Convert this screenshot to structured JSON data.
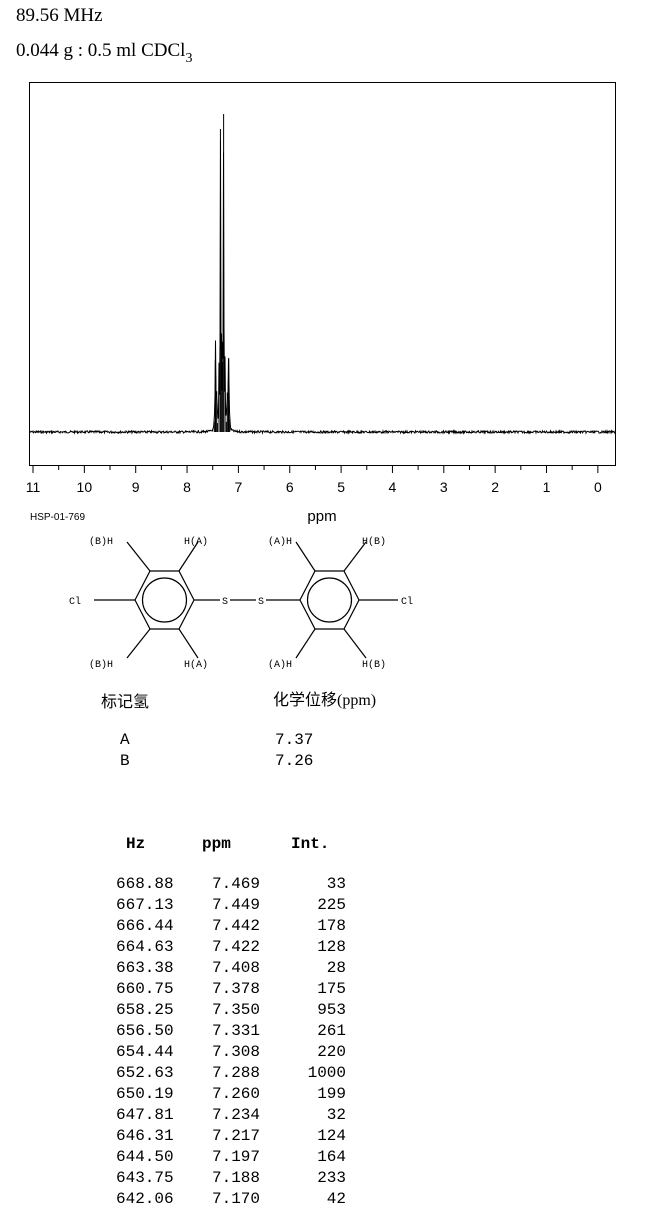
{
  "header": {
    "frequency": "89.56 MHz",
    "sample_prefix": "0.044 g : 0.5 ml CDCl",
    "sample_sub": "3"
  },
  "chart_data": {
    "type": "line",
    "xlabel": "ppm",
    "x_ticks": [
      "11",
      "10",
      "9",
      "8",
      "7",
      "6",
      "5",
      "4",
      "3",
      "2",
      "1",
      "0"
    ],
    "xlim": [
      11.0,
      -0.35
    ],
    "x_reversed": true,
    "grid": false,
    "peaks_ppm": [
      7.469,
      7.449,
      7.442,
      7.422,
      7.408,
      7.378,
      7.35,
      7.331,
      7.308,
      7.288,
      7.26,
      7.234,
      7.217,
      7.197,
      7.188,
      7.17
    ],
    "peaks_intensity": [
      33,
      225,
      178,
      128,
      28,
      175,
      953,
      261,
      220,
      1000,
      199,
      32,
      124,
      164,
      233,
      42
    ]
  },
  "spectrum_code": "HSP-01-769",
  "structure": {
    "labels": {
      "hb_tl": "(B)H",
      "ha_tr": "H(A)",
      "ha_tl2": "(A)H",
      "hb_tr2": "H(B)",
      "hb_bl": "(B)H",
      "ha_br": "H(A)",
      "ha_bl2": "(A)H",
      "hb_br2": "H(B)",
      "cl_left": "Cl",
      "cl_right": "Cl",
      "s1": "S",
      "s2": "S"
    }
  },
  "assignment": {
    "header_label": "标记氢",
    "header_shift": "化学位移(ppm)",
    "rows": [
      {
        "label": "A",
        "shift": "7.37"
      },
      {
        "label": "B",
        "shift": "7.26"
      }
    ]
  },
  "peak_table": {
    "headers": {
      "hz": "Hz",
      "ppm": "ppm",
      "int": "Int."
    },
    "rows": [
      {
        "hz": "668.88",
        "ppm": "7.469",
        "int": "33"
      },
      {
        "hz": "667.13",
        "ppm": "7.449",
        "int": "225"
      },
      {
        "hz": "666.44",
        "ppm": "7.442",
        "int": "178"
      },
      {
        "hz": "664.63",
        "ppm": "7.422",
        "int": "128"
      },
      {
        "hz": "663.38",
        "ppm": "7.408",
        "int": "28"
      },
      {
        "hz": "660.75",
        "ppm": "7.378",
        "int": "175"
      },
      {
        "hz": "658.25",
        "ppm": "7.350",
        "int": "953"
      },
      {
        "hz": "656.50",
        "ppm": "7.331",
        "int": "261"
      },
      {
        "hz": "654.44",
        "ppm": "7.308",
        "int": "220"
      },
      {
        "hz": "652.63",
        "ppm": "7.288",
        "int": "1000"
      },
      {
        "hz": "650.19",
        "ppm": "7.260",
        "int": "199"
      },
      {
        "hz": "647.81",
        "ppm": "7.234",
        "int": "32"
      },
      {
        "hz": "646.31",
        "ppm": "7.217",
        "int": "124"
      },
      {
        "hz": "644.50",
        "ppm": "7.197",
        "int": "164"
      },
      {
        "hz": "643.75",
        "ppm": "7.188",
        "int": "233"
      },
      {
        "hz": "642.06",
        "ppm": "7.170",
        "int": "42"
      }
    ]
  }
}
